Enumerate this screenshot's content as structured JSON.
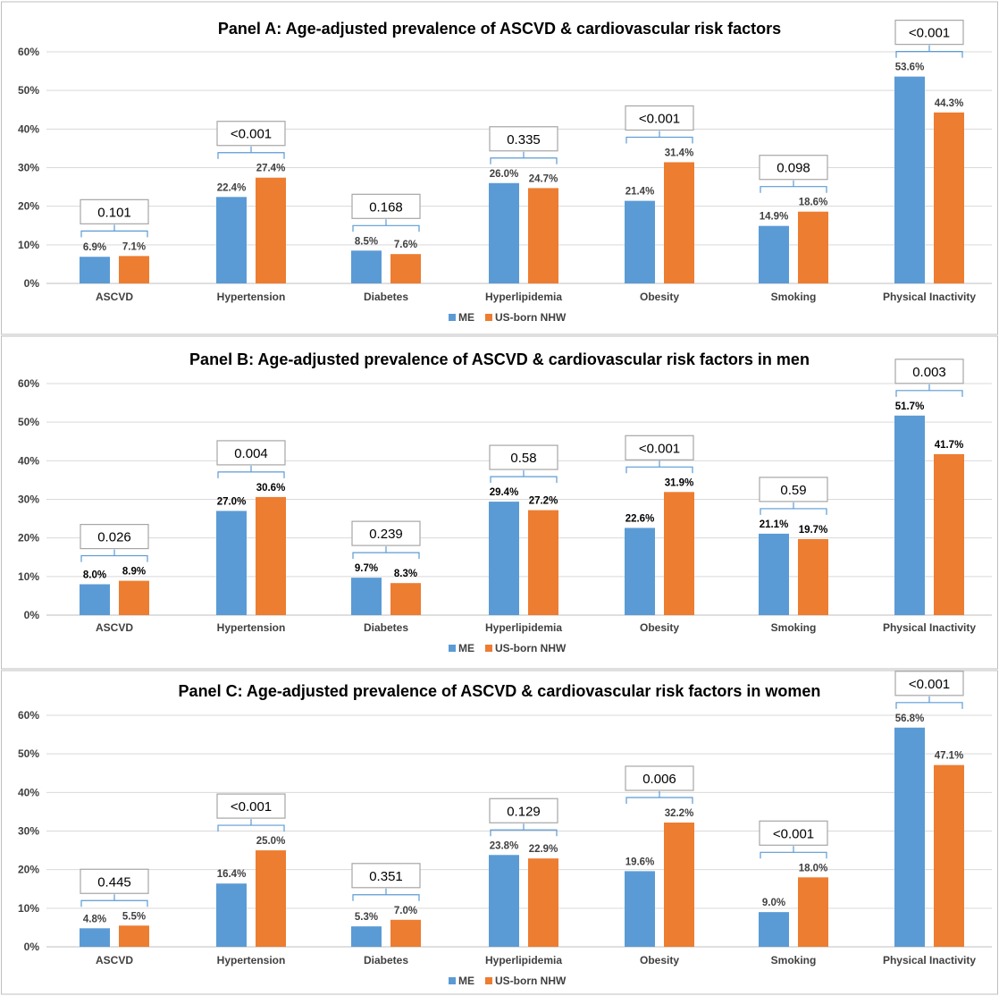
{
  "colors": {
    "me": "#5b9bd5",
    "nhw": "#ed7d31"
  },
  "chart_data": [
    {
      "type": "bar",
      "title": "Panel A: Age-adjusted prevalence of ASCVD & cardiovascular risk factors",
      "categories": [
        "ASCVD",
        "Hypertension",
        "Diabetes",
        "Hyperlipidemia",
        "Obesity",
        "Smoking",
        "Physical Inactivity"
      ],
      "series": [
        {
          "name": "ME",
          "values": [
            6.9,
            22.4,
            8.5,
            26.0,
            21.4,
            14.9,
            53.6
          ],
          "labels": [
            "6.9%",
            "22.4%",
            "8.5%",
            "26.0%",
            "21.4%",
            "14.9%",
            "53.6%"
          ]
        },
        {
          "name": "US-born NHW",
          "values": [
            7.1,
            27.4,
            7.6,
            24.7,
            31.4,
            18.6,
            44.3
          ],
          "labels": [
            "7.1%",
            "27.4%",
            "7.6%",
            "24.7%",
            "31.4%",
            "18.6%",
            "44.3%"
          ]
        }
      ],
      "pvalues": [
        "0.101",
        "<0.001",
        "0.168",
        "0.335",
        "<0.001",
        "0.098",
        "<0.001"
      ],
      "yticks": [
        "0%",
        "10%",
        "20%",
        "30%",
        "40%",
        "50%",
        "60%"
      ],
      "ylim": [
        0,
        60
      ],
      "legend": "bottom"
    },
    {
      "type": "bar",
      "title": "Panel B: Age-adjusted prevalence of ASCVD & cardiovascular risk factors in men",
      "categories": [
        "ASCVD",
        "Hypertension",
        "Diabetes",
        "Hyperlipidemia",
        "Obesity",
        "Smoking",
        "Physical Inactivity"
      ],
      "series": [
        {
          "name": "ME",
          "values": [
            8.0,
            27.0,
            9.7,
            29.4,
            22.6,
            21.1,
            51.7
          ],
          "labels": [
            "8.0%",
            "27.0%",
            "9.7%",
            "29.4%",
            "22.6%",
            "21.1%",
            "51.7%"
          ]
        },
        {
          "name": "US-born NHW",
          "values": [
            8.9,
            30.6,
            8.3,
            27.2,
            31.9,
            19.7,
            41.7
          ],
          "labels": [
            "8.9%",
            "30.6%",
            "8.3%",
            "27.2%",
            "31.9%",
            "19.7%",
            "41.7%"
          ]
        }
      ],
      "pvalues": [
        "0.026",
        "0.004",
        "0.239",
        "0.58",
        "<0.001",
        "0.59",
        "0.003"
      ],
      "yticks": [
        "0%",
        "10%",
        "20%",
        "30%",
        "40%",
        "50%",
        "60%"
      ],
      "ylim": [
        0,
        60
      ],
      "legend": "bottom"
    },
    {
      "type": "bar",
      "title": "Panel C: Age-adjusted prevalence of ASCVD & cardiovascular risk factors in women",
      "categories": [
        "ASCVD",
        "Hypertension",
        "Diabetes",
        "Hyperlipidemia",
        "Obesity",
        "Smoking",
        "Physical Inactivity"
      ],
      "series": [
        {
          "name": "ME",
          "values": [
            4.8,
            16.4,
            5.3,
            23.8,
            19.6,
            9.0,
            56.8
          ],
          "labels": [
            "4.8%",
            "16.4%",
            "5.3%",
            "23.8%",
            "19.6%",
            "9.0%",
            "56.8%"
          ]
        },
        {
          "name": "US-born NHW",
          "values": [
            5.5,
            25.0,
            7.0,
            22.9,
            32.2,
            18.0,
            47.1
          ],
          "labels": [
            "5.5%",
            "25.0%",
            "7.0%",
            "22.9%",
            "32.2%",
            "18.0%",
            "47.1%"
          ]
        }
      ],
      "pvalues": [
        "0.445",
        "<0.001",
        "0.351",
        "0.129",
        "0.006",
        "<0.001",
        "<0.001"
      ],
      "yticks": [
        "0%",
        "10%",
        "20%",
        "30%",
        "40%",
        "50%",
        "60%"
      ],
      "ylim": [
        0,
        60
      ],
      "legend": "bottom"
    }
  ]
}
